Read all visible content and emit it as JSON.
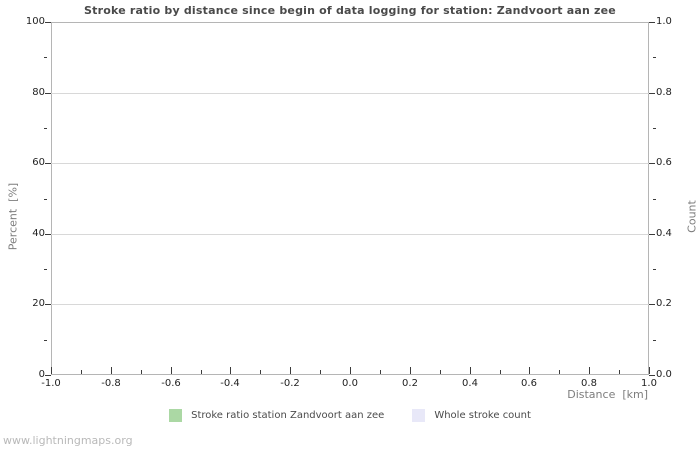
{
  "footer": {
    "watermark": "www.lightningmaps.org"
  },
  "chart_data": {
    "type": "bar",
    "title": "Stroke ratio by distance since begin of data logging for station: Zandvoort aan zee",
    "xlabel": "Distance  [km]",
    "ylabel_left": "Percent  [%]",
    "ylabel_right": "Count",
    "xlim": [
      -1.0,
      1.0
    ],
    "ylim_left": [
      0,
      100
    ],
    "ylim_right": [
      0.0,
      1.0
    ],
    "grid": "horizontal-major-only",
    "legend_position": "bottom-center",
    "x_ticks": [
      {
        "value": -1.0,
        "label": "-1.0"
      },
      {
        "value": -0.8,
        "label": "-0.8"
      },
      {
        "value": -0.6,
        "label": "-0.6"
      },
      {
        "value": -0.4,
        "label": "-0.4"
      },
      {
        "value": -0.2,
        "label": "-0.2"
      },
      {
        "value": 0.0,
        "label": "0.0"
      },
      {
        "value": 0.2,
        "label": "0.2"
      },
      {
        "value": 0.4,
        "label": "0.4"
      },
      {
        "value": 0.6,
        "label": "0.6"
      },
      {
        "value": 0.8,
        "label": "0.8"
      },
      {
        "value": 1.0,
        "label": "1.0"
      }
    ],
    "x_minor_ticks": [
      -0.9,
      -0.7,
      -0.5,
      -0.3,
      -0.1,
      0.1,
      0.3,
      0.5,
      0.7,
      0.9
    ],
    "y_ticks_left": [
      {
        "value": 0,
        "label": "0"
      },
      {
        "value": 20,
        "label": "20"
      },
      {
        "value": 40,
        "label": "40"
      },
      {
        "value": 60,
        "label": "60"
      },
      {
        "value": 80,
        "label": "80"
      },
      {
        "value": 100,
        "label": "100"
      }
    ],
    "y_minor_ticks_left": [
      10,
      30,
      50,
      70,
      90
    ],
    "y_ticks_right": [
      {
        "value": 0.0,
        "label": "0.0"
      },
      {
        "value": 0.2,
        "label": "0.2"
      },
      {
        "value": 0.4,
        "label": "0.4"
      },
      {
        "value": 0.6,
        "label": "0.6"
      },
      {
        "value": 0.8,
        "label": "0.8"
      },
      {
        "value": 1.0,
        "label": "1.0"
      }
    ],
    "y_minor_ticks_right": [
      0.1,
      0.3,
      0.5,
      0.7,
      0.9
    ],
    "series": [
      {
        "name": "Stroke ratio station Zandvoort aan zee",
        "color": "#abd8a4",
        "values": []
      },
      {
        "name": "Whole stroke count",
        "color": "#e8e8f8",
        "values": []
      }
    ]
  }
}
